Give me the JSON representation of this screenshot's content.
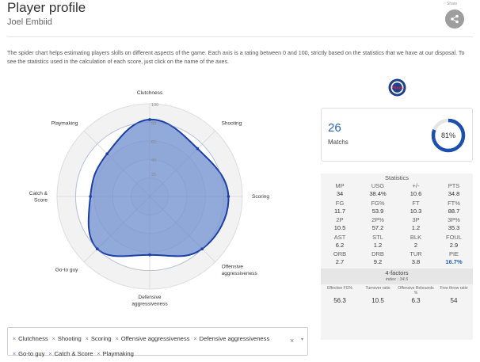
{
  "header": {
    "title": "Player profile",
    "player": "Joel Embiid",
    "share_label": "Share"
  },
  "intro": "The spider chart helps estimating players skills on different aspects of the game. Each axis is a rating between 0 and 100, strictly based on the statistics that we have at our disposal. To see the statistics used in the calculation of each score, just click on the name of the axes.",
  "team": {
    "logo_text": "76ers"
  },
  "matches": {
    "count": "26",
    "label": "Matchs",
    "percent": "81%",
    "fraction": 0.81
  },
  "stats": {
    "title": "Statistics",
    "items": [
      {
        "label": "MP",
        "value": "34"
      },
      {
        "label": "USG",
        "value": "38.4%"
      },
      {
        "label": "+/-",
        "value": "10.6"
      },
      {
        "label": "PTS",
        "value": "34.8"
      },
      {
        "label": "FG",
        "value": "11.7"
      },
      {
        "label": "FG%",
        "value": "53.9"
      },
      {
        "label": "FT",
        "value": "10.3"
      },
      {
        "label": "FT%",
        "value": "88.7"
      },
      {
        "label": "2P",
        "value": "10.5"
      },
      {
        "label": "2P%",
        "value": "57.2"
      },
      {
        "label": "3P",
        "value": "1.2"
      },
      {
        "label": "3P%",
        "value": "35.3"
      },
      {
        "label": "AST",
        "value": "6.2"
      },
      {
        "label": "STL",
        "value": "1.2"
      },
      {
        "label": "BLK",
        "value": "2"
      },
      {
        "label": "FOUL",
        "value": "2.9"
      },
      {
        "label": "ORB",
        "value": "2.7"
      },
      {
        "label": "DRB",
        "value": "9.2"
      },
      {
        "label": "TUR",
        "value": "3.8"
      },
      {
        "label": "PIE",
        "value": "16.7%",
        "highlight": true
      }
    ]
  },
  "factors": {
    "title": "4-factors",
    "index": "index : 34.5",
    "items": [
      {
        "label": "Effective FG%",
        "value": "56.3"
      },
      {
        "label": "Turnover ratio",
        "value": "10.5"
      },
      {
        "label": "Offensive Rebounds %",
        "value": "6.3"
      },
      {
        "label": "Free throw ratio",
        "value": "54"
      }
    ]
  },
  "selector": {
    "chips": [
      "Clutchness",
      "Shooting",
      "Scoring",
      "Offensive aggressiveness",
      "Defensive aggressiveness",
      "Go-to guy",
      "Catch & Score",
      "Playmaking"
    ],
    "remove_glyph": "×",
    "clear_glyph": "×",
    "caret_glyph": "▾"
  },
  "chart_data": {
    "type": "radar",
    "axes": [
      "Clutchness",
      "Shooting",
      "Scoring",
      "Offensive aggressiveness",
      "Defensive aggressiveness",
      "Go-to guy",
      "Catch & Score",
      "Playmaking"
    ],
    "axis_label_lines": [
      [
        "Clutchness"
      ],
      [
        "Shooting"
      ],
      [
        "Scoring"
      ],
      [
        "Offensive",
        "aggressiveness"
      ],
      [
        "Defensive",
        "aggressiveness"
      ],
      [
        "Go-to guy"
      ],
      [
        "Catch &",
        "Score"
      ],
      [
        "Playmaking"
      ]
    ],
    "values": [
      83,
      73,
      85,
      80,
      63,
      80,
      64,
      65
    ],
    "ticks": [
      25,
      40,
      60,
      80,
      100
    ],
    "range": [
      0,
      100
    ],
    "colors": {
      "fill": "#7f9bd3",
      "stroke": "#1a3fa8",
      "grid": "#dddddd",
      "band": "#f2f2f2"
    }
  }
}
